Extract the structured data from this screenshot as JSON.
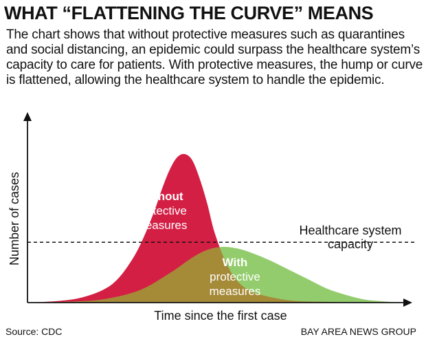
{
  "title": "WHAT “FLATTENING THE CURVE” MEANS",
  "intro": "The chart shows that without protective measures such as quarantines and social distancing, an epidemic could surpass the healthcare system’s capacity to care for patients. With protective measures, the hump or curve is flattened, allowing the healthcare system to handle the epidemic.",
  "source": "Source: CDC",
  "credit": "BAY AREA NEWS GROUP",
  "chart_data": {
    "type": "area",
    "xlabel": "Time since the first case",
    "ylabel": "Number of  cases",
    "xlim": [
      0,
      100
    ],
    "ylim": [
      0,
      100
    ],
    "grid": false,
    "colors": {
      "without": "#d41f45",
      "with": "#93cc6c",
      "overlap": "#a58a38",
      "axis": "#111111"
    },
    "series": [
      {
        "key": "without",
        "label_lines": [
          "Without",
          "protective",
          "measures"
        ],
        "x": [
          0,
          8,
          14,
          20,
          24,
          28,
          31,
          34,
          36,
          38,
          40,
          42,
          44,
          46,
          48,
          50,
          53,
          56,
          60,
          66,
          72,
          80,
          90,
          100
        ],
        "y": [
          0,
          1,
          3,
          8,
          15,
          28,
          42,
          60,
          74,
          86,
          94,
          96,
          92,
          80,
          64,
          45,
          26,
          14,
          7,
          3,
          1,
          0.5,
          0,
          0
        ]
      },
      {
        "key": "with",
        "label_lines": [
          "With",
          "protective",
          "measures"
        ],
        "x": [
          0,
          10,
          20,
          30,
          38,
          44,
          48,
          52,
          56,
          60,
          65,
          70,
          75,
          80,
          85,
          90,
          95,
          100
        ],
        "y": [
          0,
          0.5,
          2,
          8,
          19,
          29,
          34,
          36,
          35,
          32,
          27,
          21,
          15,
          9,
          5,
          2,
          0.8,
          0
        ]
      }
    ],
    "reference_line": {
      "y": 39,
      "label_lines": [
        "Healthcare system",
        "capacity"
      ]
    }
  }
}
